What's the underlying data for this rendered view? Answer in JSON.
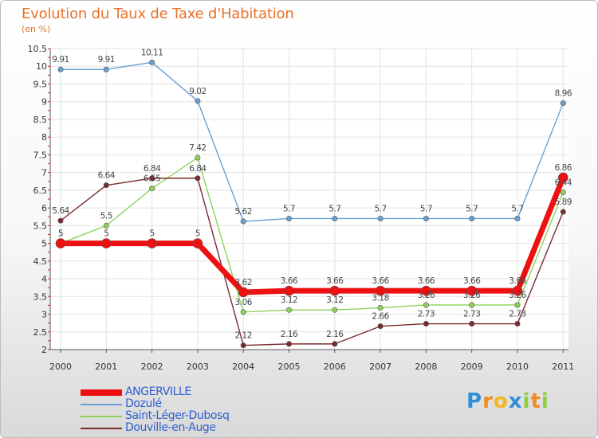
{
  "chart_data": {
    "type": "line",
    "title": "Evolution du Taux de Taxe d'Habitation",
    "subtitle": "(en %)",
    "x": [
      "2000",
      "2001",
      "2002",
      "2003",
      "2004",
      "2005",
      "2006",
      "2007",
      "2008",
      "2009",
      "2010",
      "2011"
    ],
    "ylim": [
      2,
      10.5
    ],
    "yticks": [
      "2",
      "2.5",
      "3",
      "3.5",
      "4",
      "4.5",
      "5",
      "5.5",
      "6",
      "6.5",
      "7",
      "7.5",
      "8",
      "8.5",
      "9",
      "9.5",
      "10",
      "10.5"
    ],
    "grid": true,
    "legend_position": "bottom-left",
    "series": [
      {
        "name": "Dozulé",
        "color": "#6a9fd4",
        "values": [
          9.91,
          9.91,
          10.11,
          9.02,
          5.62,
          5.7,
          5.7,
          5.7,
          5.7,
          5.7,
          5.7,
          8.96
        ],
        "labels": [
          "9.91",
          "9.91",
          "10.11",
          "9.02",
          "5.62",
          "5.7",
          "5.7",
          "5.7",
          "5.7",
          "5.7",
          "5.7",
          "8.96"
        ]
      },
      {
        "name": "Saint-Léger-Dubosq",
        "color": "#8ed25a",
        "values": [
          5,
          5.5,
          6.55,
          7.42,
          3.06,
          3.12,
          3.12,
          3.18,
          3.26,
          3.26,
          3.26,
          6.44
        ],
        "labels": [
          "5",
          "5.5",
          "6.55",
          "7.42",
          "3.06",
          "3.12",
          "3.12",
          "3.18",
          "3.26",
          "3.26",
          "3.26",
          "6.44"
        ]
      },
      {
        "name": "Douville-en-Auge",
        "color": "#7a2a2e",
        "values": [
          5.64,
          6.64,
          6.84,
          6.84,
          2.12,
          2.16,
          2.16,
          2.66,
          2.73,
          2.73,
          2.73,
          5.89
        ],
        "labels": [
          "5.64",
          "6.64",
          "6.84",
          "6.84",
          "2.12",
          "2.16",
          "2.16",
          "2.66",
          "2.73",
          "2.73",
          "2.73",
          "5.89"
        ]
      },
      {
        "name": "ANGERVILLE",
        "color": "#ee1111",
        "values": [
          5,
          5,
          5,
          5,
          3.62,
          3.66,
          3.66,
          3.66,
          3.66,
          3.66,
          3.66,
          6.86
        ],
        "labels": [
          "5",
          "5",
          "5",
          "5",
          "3.62",
          "3.66",
          "3.66",
          "3.66",
          "3.66",
          "3.66",
          "3.66",
          "6.86"
        ]
      }
    ]
  },
  "legend": {
    "items": [
      {
        "label": "ANGERVILLE",
        "color": "#ee1111"
      },
      {
        "label": "Dozulé",
        "color": "#6a9fd4"
      },
      {
        "label": "Saint-Léger-Dubosq",
        "color": "#8ed25a"
      },
      {
        "label": "Douville-en-Auge",
        "color": "#7a2a2e"
      }
    ]
  },
  "logo": {
    "letters": [
      "P",
      "r",
      "o",
      "x",
      "i",
      "t",
      "i"
    ],
    "colors": [
      "#2f8fd8",
      "#f28c1e",
      "#f2b81e",
      "#2f8fd8",
      "#8ccf3a",
      "#f28c1e",
      "#8ccf3a"
    ]
  }
}
